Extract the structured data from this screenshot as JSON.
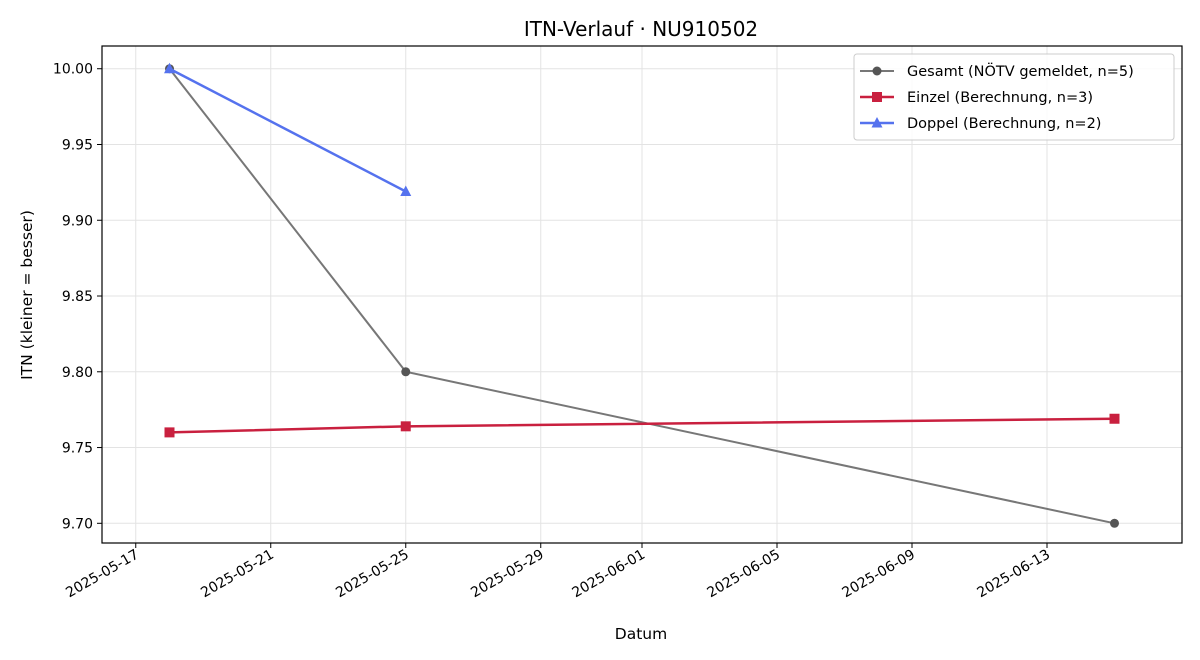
{
  "chart_data": {
    "type": "line",
    "title": "ITN-Verlauf · NU910502",
    "xlabel": "Datum",
    "ylabel": "ITN  (kleiner = besser)",
    "xlim": [
      "2025-05-16",
      "2025-06-17"
    ],
    "ylim": [
      9.687,
      10.015
    ],
    "x_ticks": [
      "2025-05-17",
      "2025-05-21",
      "2025-05-25",
      "2025-05-29",
      "2025-06-01",
      "2025-06-05",
      "2025-06-09",
      "2025-06-13"
    ],
    "y_ticks": [
      9.7,
      9.75,
      9.8,
      9.85,
      9.9,
      9.95,
      10.0
    ],
    "grid": true,
    "legend_position": "top-right",
    "series": [
      {
        "name": "Gesamt (NÖTV gemeldet, n=5)",
        "color": "#777777",
        "marker_color": "#555555",
        "marker": "circle",
        "points": [
          {
            "x": "2025-05-18",
            "y": 10.0
          },
          {
            "x": "2025-05-25",
            "y": 9.8
          },
          {
            "x": "2025-06-15",
            "y": 9.7
          }
        ]
      },
      {
        "name": "Einzel (Berechnung, n=3)",
        "color": "#c9203f",
        "marker_color": "#c9203f",
        "marker": "square",
        "points": [
          {
            "x": "2025-05-18",
            "y": 9.76
          },
          {
            "x": "2025-05-25",
            "y": 9.764
          },
          {
            "x": "2025-06-15",
            "y": 9.769
          }
        ]
      },
      {
        "name": "Doppel (Berechnung, n=2)",
        "color": "#5572ee",
        "marker_color": "#5572ee",
        "marker": "triangle",
        "points": [
          {
            "x": "2025-05-18",
            "y": 10.0
          },
          {
            "x": "2025-05-25",
            "y": 9.919
          }
        ]
      }
    ]
  }
}
